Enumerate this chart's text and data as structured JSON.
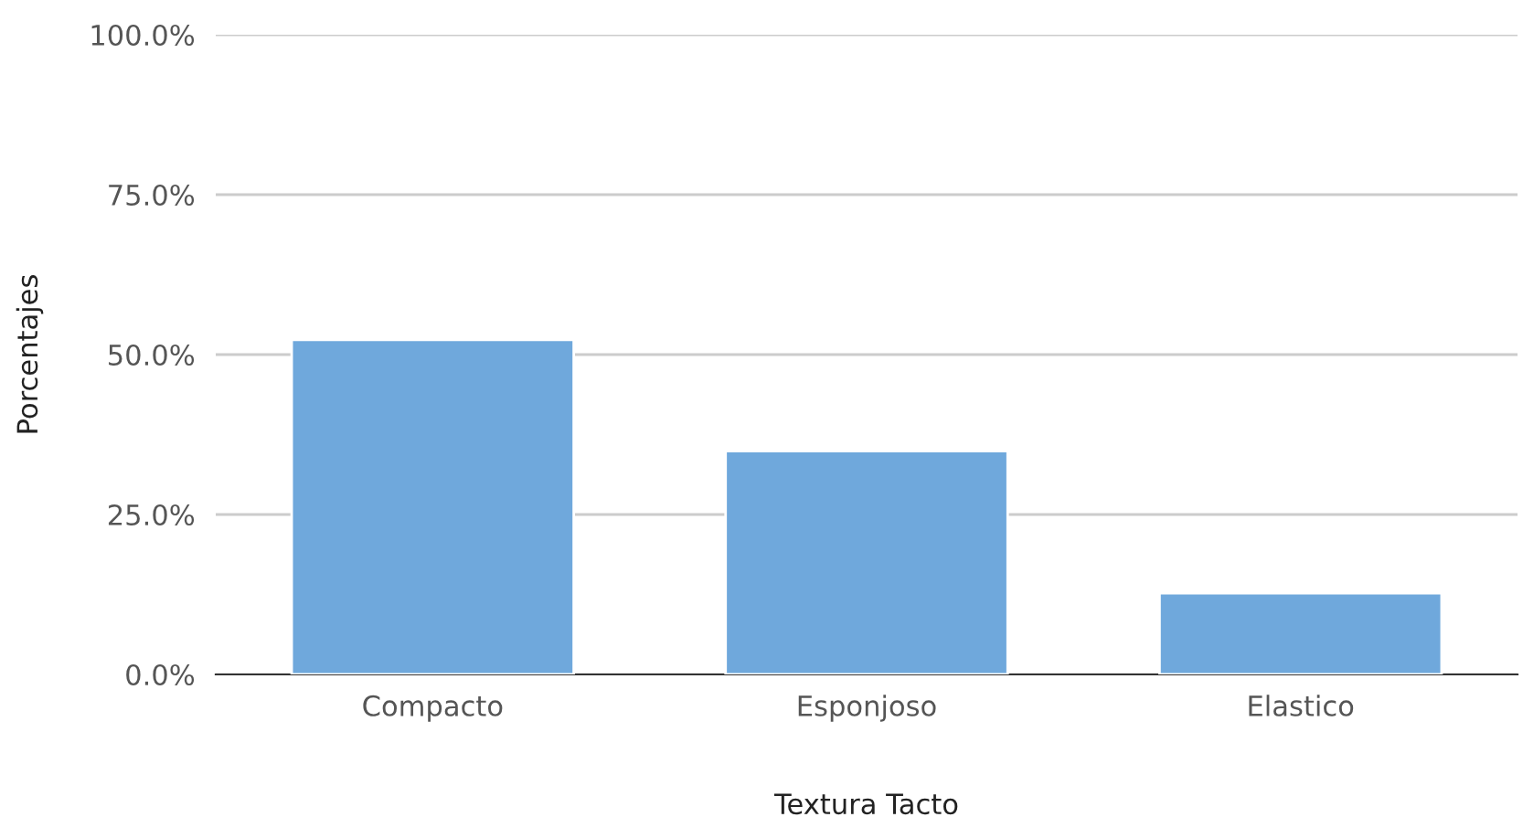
{
  "chart_data": {
    "type": "bar",
    "xlabel": "Textura Tacto",
    "ylabel": "Porcentajes",
    "categories": [
      "Compacto",
      "Esponjoso",
      "Elastico"
    ],
    "values": [
      52.3,
      34.9,
      12.7
    ],
    "color": "#6fa8dc",
    "ylim": [
      0,
      100
    ],
    "yticks": [
      {
        "value": 0,
        "label": "0.0%"
      },
      {
        "value": 25,
        "label": "25.0%"
      },
      {
        "value": 50,
        "label": "50.0%"
      },
      {
        "value": 75,
        "label": "75.0%"
      },
      {
        "value": 100,
        "label": "100.0%"
      }
    ],
    "grid": "y"
  }
}
